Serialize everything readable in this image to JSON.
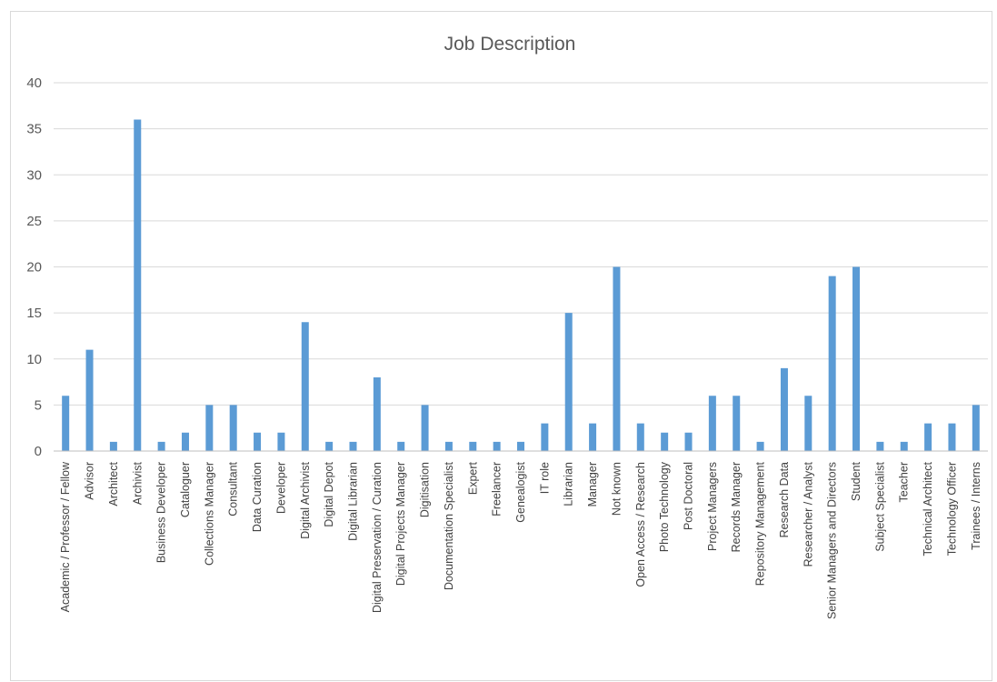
{
  "chart_data": {
    "type": "bar",
    "title": "Job Description",
    "xlabel": "",
    "ylabel": "",
    "ylim": [
      0,
      40
    ],
    "yticks": [
      "0",
      "5",
      "10",
      "15",
      "20",
      "25",
      "30",
      "35",
      "40"
    ],
    "grid": true,
    "bar_color": "#5b9bd5",
    "categories": [
      "Academic / Professor / Fellow",
      "Advisor",
      "Architect",
      "Archivist",
      "Business Developer",
      "Cataloguer",
      "Collections Manager",
      "Consultant",
      "Data Curation",
      "Developer",
      "Digital Archivist",
      "Digital Depot",
      "Digital Librarian",
      "Digital Preservation / Curation",
      "Digital Projects Manager",
      "Digitisation",
      "Documentation Specialist",
      "Expert",
      "Freelancer",
      "Genealogist",
      "IT role",
      "Librarian",
      "Manager",
      "Not known",
      "Open Access / Research",
      "Photo Technology",
      "Post Doctoral",
      "Project Managers",
      "Records Manager",
      "Repository Management",
      "Research Data",
      "Researcher / Analyst",
      "Senior Managers and Directors",
      "Student",
      "Subject Specialist",
      "Teacher",
      "Technical Architect",
      "Technology Officer",
      "Trainees / Interns"
    ],
    "values": [
      6,
      11,
      1,
      36,
      1,
      2,
      5,
      5,
      2,
      2,
      14,
      1,
      1,
      8,
      1,
      5,
      1,
      1,
      1,
      1,
      3,
      15,
      3,
      20,
      3,
      2,
      2,
      6,
      6,
      1,
      9,
      6,
      19,
      20,
      1,
      1,
      3,
      3,
      5
    ]
  }
}
